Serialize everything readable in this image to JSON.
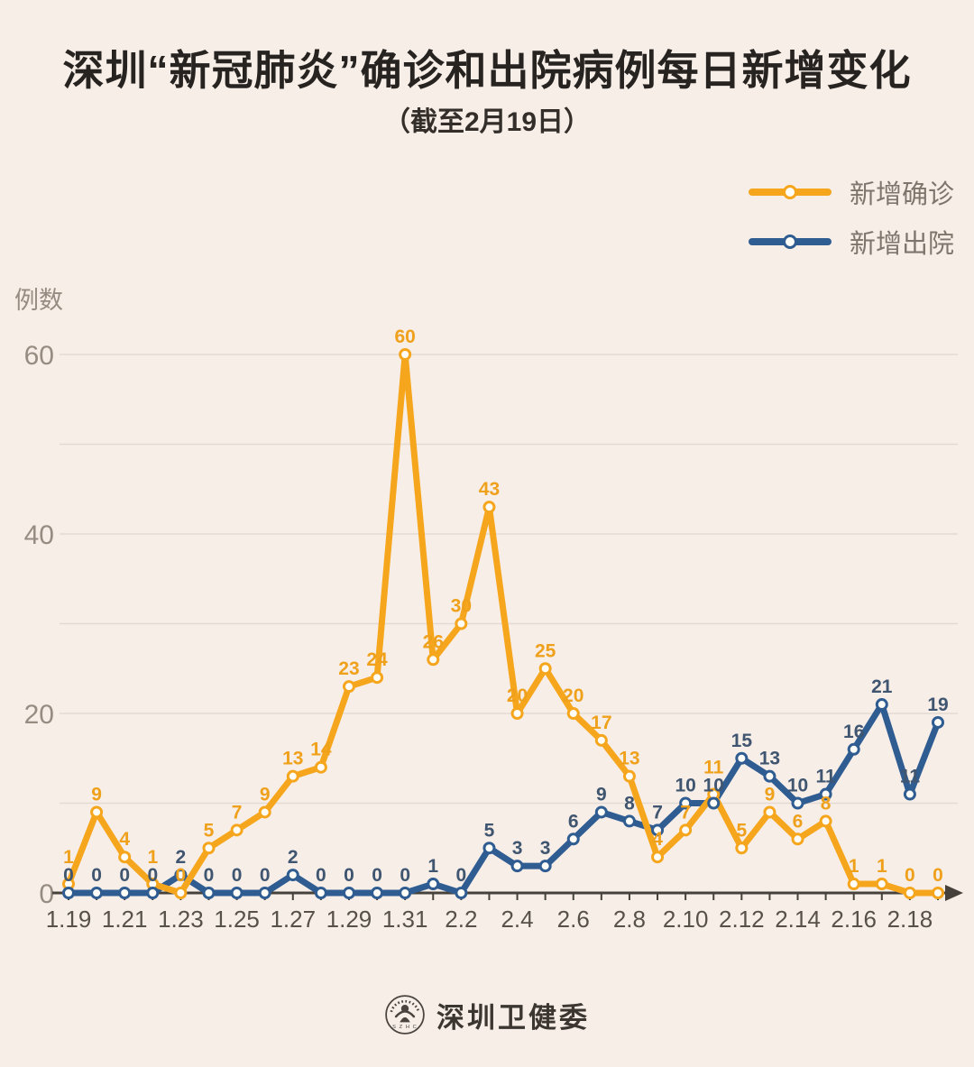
{
  "page": {
    "title": "深圳“新冠肺炎”确诊和出院病例每日新增变化",
    "subtitle": "（截至2月19日）",
    "footer_brand": "深圳卫健委",
    "background_color": "#F7EEE8"
  },
  "chart_data": {
    "type": "line",
    "title": "深圳“新冠肺炎”确诊和出院病例每日新增变化",
    "subtitle": "（截至2月19日）",
    "ylabel": "例数",
    "xlabel": "",
    "categories": [
      "1.19",
      "1.20",
      "1.21",
      "1.22",
      "1.23",
      "1.24",
      "1.25",
      "1.26",
      "1.27",
      "1.28",
      "1.29",
      "1.30",
      "1.31",
      "2.1",
      "2.2",
      "2.3",
      "2.4",
      "2.5",
      "2.6",
      "2.7",
      "2.8",
      "2.9",
      "2.10",
      "2.11",
      "2.12",
      "2.13",
      "2.14",
      "2.15",
      "2.16",
      "2.17",
      "2.18",
      "2.19"
    ],
    "x_tick_labels": [
      "1.19",
      "1.21",
      "1.23",
      "1.25",
      "1.27",
      "1.29",
      "1.31",
      "2.2",
      "2.4",
      "2.6",
      "2.8",
      "2.10",
      "2.12",
      "2.14",
      "2.16",
      "2.18"
    ],
    "y_ticks": [
      0,
      20,
      40,
      60
    ],
    "ylim": [
      0,
      62
    ],
    "grid": "horizontal-every-10",
    "legend_position": "top-right",
    "series": [
      {
        "name": "新增确诊",
        "color": "#F6A61D",
        "label_color": "#EFA11C",
        "values": [
          1,
          9,
          4,
          1,
          0,
          5,
          7,
          9,
          13,
          14,
          23,
          24,
          60,
          26,
          30,
          43,
          20,
          25,
          20,
          17,
          13,
          4,
          7,
          11,
          5,
          9,
          6,
          8,
          1,
          1,
          0,
          0
        ]
      },
      {
        "name": "新增出院",
        "color": "#2F5C91",
        "label_color": "#3F5570",
        "values": [
          0,
          0,
          0,
          0,
          2,
          0,
          0,
          0,
          2,
          0,
          0,
          0,
          0,
          1,
          0,
          5,
          3,
          3,
          6,
          9,
          8,
          7,
          10,
          10,
          15,
          13,
          10,
          11,
          16,
          21,
          11,
          19
        ]
      }
    ],
    "colors": {
      "grid_line": "#E3DAD3",
      "axis_line": "#46413B",
      "y_tick_text": "#968C82",
      "x_tick_text": "#57514A",
      "marker_fill": "#FFFDF8"
    }
  }
}
